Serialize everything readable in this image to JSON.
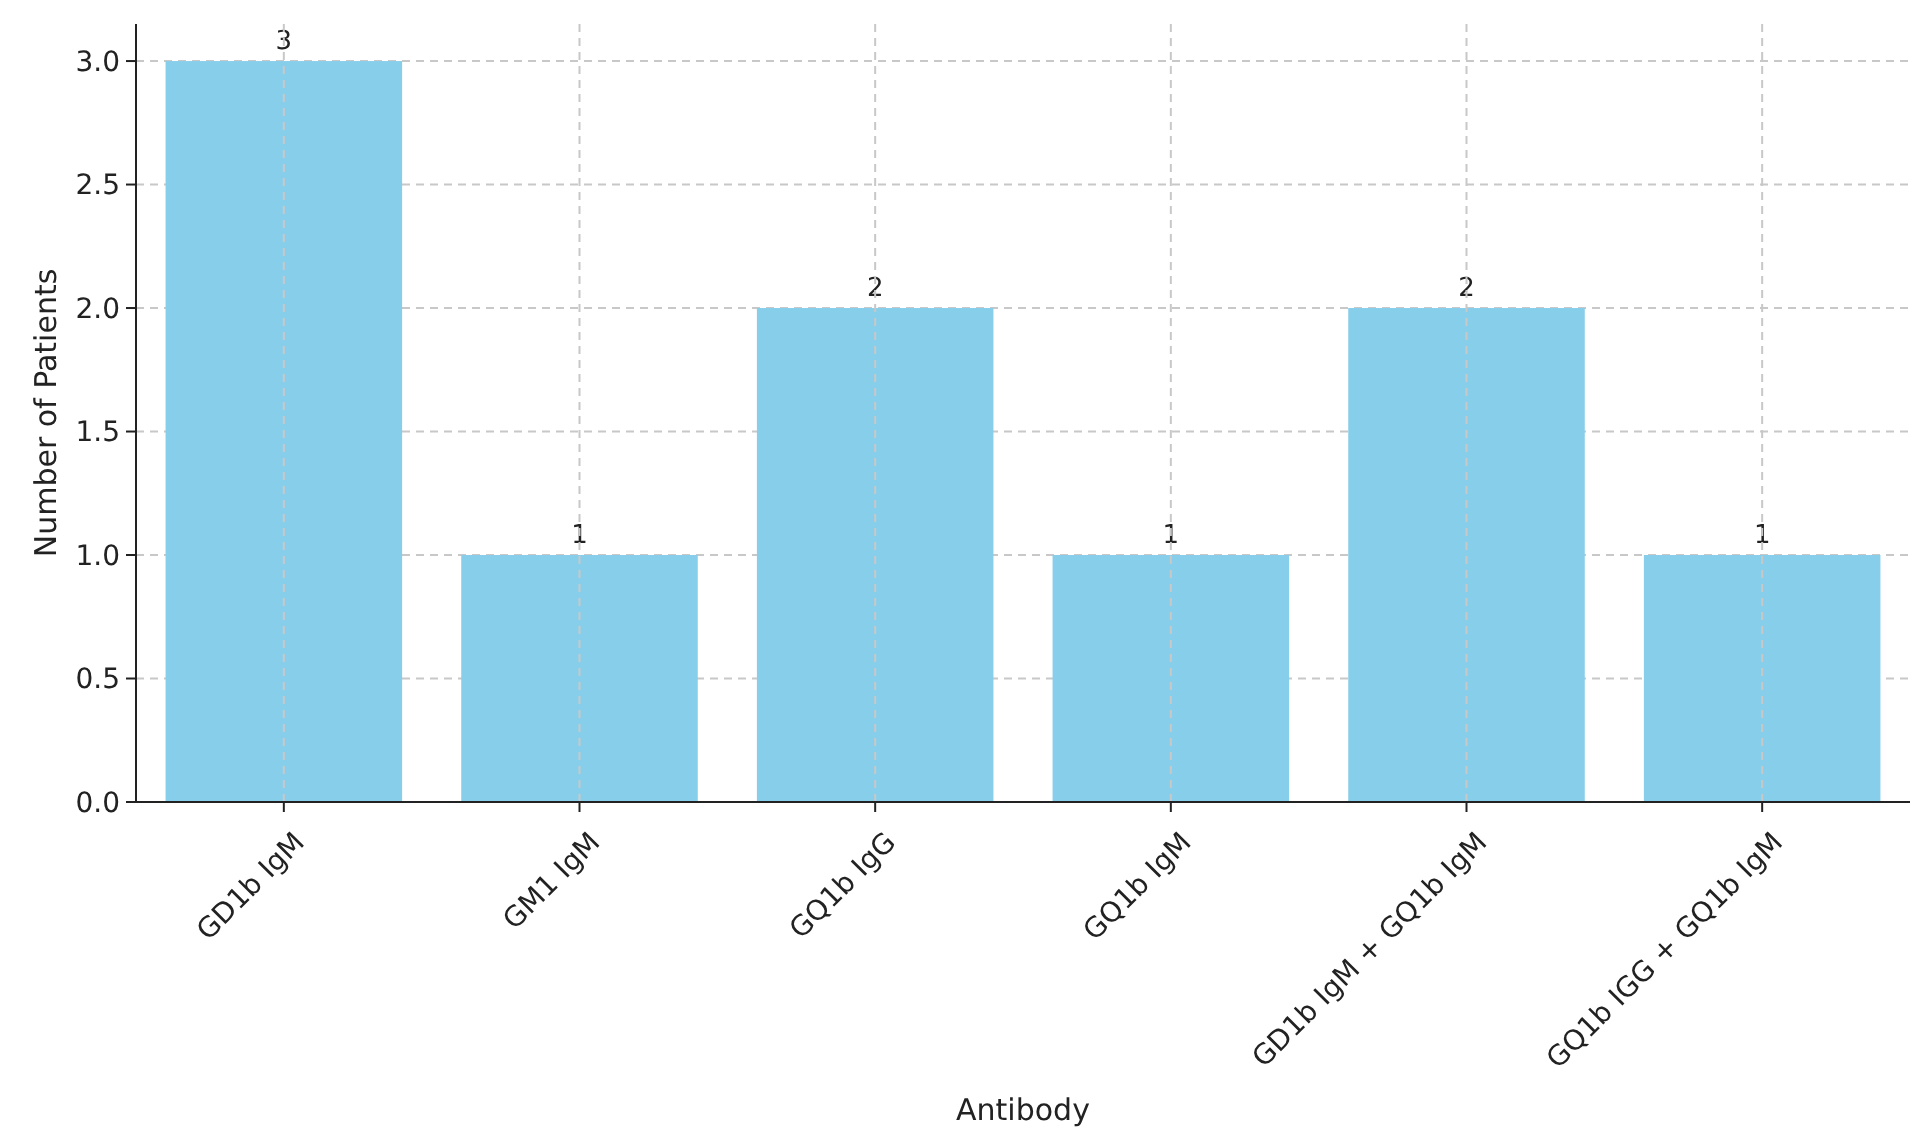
{
  "chart_data": {
    "type": "bar",
    "xlabel": "Antibody",
    "ylabel": "Number of Patients",
    "categories": [
      "GD1b IgM",
      "GM1 IgM",
      "GQ1b IgG",
      "GQ1b IgM",
      "GD1b IgM + GQ1b IgM",
      "GQ1b IGG + GQ1b IgM"
    ],
    "values": [
      3,
      1,
      2,
      1,
      2,
      1
    ],
    "color": "#87ceeb",
    "data_labels": true,
    "grid": true,
    "ylim": [
      0,
      3.15
    ],
    "yticks": [
      {
        "value": 0,
        "label": "0.0"
      },
      {
        "value": 0.5,
        "label": "0.5"
      },
      {
        "value": 1,
        "label": "1.0"
      },
      {
        "value": 1.5,
        "label": "1.5"
      },
      {
        "value": 2,
        "label": "2.0"
      },
      {
        "value": 2.5,
        "label": "2.5"
      },
      {
        "value": 3,
        "label": "3.0"
      }
    ]
  }
}
